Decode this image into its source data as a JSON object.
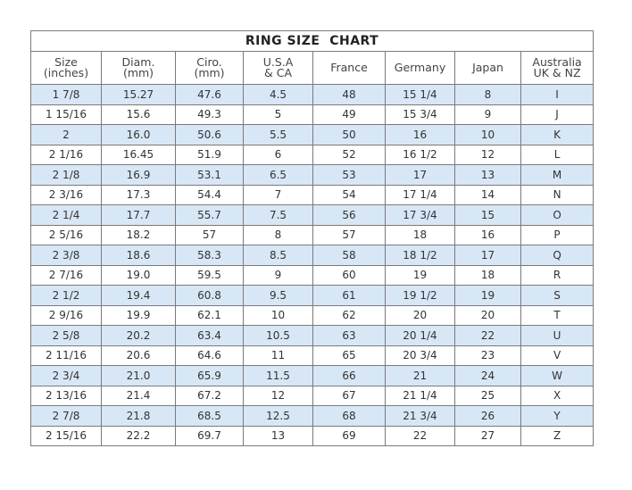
{
  "title": "RING SIZE  CHART",
  "headers": [
    [
      "Size",
      "(inches)"
    ],
    [
      "Diam.",
      "(mm)"
    ],
    [
      "Ciro.",
      "(mm)"
    ],
    [
      "U.S.A",
      "& CA"
    ],
    [
      "France",
      ""
    ],
    [
      "Germany",
      ""
    ],
    [
      "Japan",
      ""
    ],
    [
      "Australia",
      "UK & NZ"
    ]
  ],
  "rows": [
    [
      "1 7/8",
      "15.27",
      "47.6",
      "4.5",
      "48",
      "15 1/4",
      "8",
      "I"
    ],
    [
      "1 15/16",
      "15.6",
      "49.3",
      "5",
      "49",
      "15 3/4",
      "9",
      "J"
    ],
    [
      "2",
      "16.0",
      "50.6",
      "5.5",
      "50",
      "16",
      "10",
      "K"
    ],
    [
      "2 1/16",
      "16.45",
      "51.9",
      "6",
      "52",
      "16 1/2",
      "12",
      "L"
    ],
    [
      "2 1/8",
      "16.9",
      "53.1",
      "6.5",
      "53",
      "17",
      "13",
      "M"
    ],
    [
      "2 3/16",
      "17.3",
      "54.4",
      "7",
      "54",
      "17 1/4",
      "14",
      "N"
    ],
    [
      "2 1/4",
      "17.7",
      "55.7",
      "7.5",
      "56",
      "17 3/4",
      "15",
      "O"
    ],
    [
      "2 5/16",
      "18.2",
      "57",
      "8",
      "57",
      "18",
      "16",
      "P"
    ],
    [
      "2 3/8",
      "18.6",
      "58.3",
      "8.5",
      "58",
      "18 1/2",
      "17",
      "Q"
    ],
    [
      "2 7/16",
      "19.0",
      "59.5",
      "9",
      "60",
      "19",
      "18",
      "R"
    ],
    [
      "2 1/2",
      "19.4",
      "60.8",
      "9.5",
      "61",
      "19 1/2",
      "19",
      "S"
    ],
    [
      "2 9/16",
      "19.9",
      "62.1",
      "10",
      "62",
      "20",
      "20",
      "T"
    ],
    [
      "2 5/8",
      "20.2",
      "63.4",
      "10.5",
      "63",
      "20 1/4",
      "22",
      "U"
    ],
    [
      "2 11/16",
      "20.6",
      "64.6",
      "11",
      "65",
      "20 3/4",
      "23",
      "V"
    ],
    [
      "2 3/4",
      "21.0",
      "65.9",
      "11.5",
      "66",
      "21",
      "24",
      "W"
    ],
    [
      "2 13/16",
      "21.4",
      "67.2",
      "12",
      "67",
      "21 1/4",
      "25",
      "X"
    ],
    [
      "2 7/8",
      "21.8",
      "68.5",
      "12.5",
      "68",
      "21 3/4",
      "26",
      "Y"
    ],
    [
      "2 15/16",
      "22.2",
      "69.7",
      "13",
      "69",
      "22",
      "27",
      "Z"
    ]
  ],
  "colors": {
    "alt_row": "#d8e7f6",
    "border": "#7a7a7a"
  }
}
